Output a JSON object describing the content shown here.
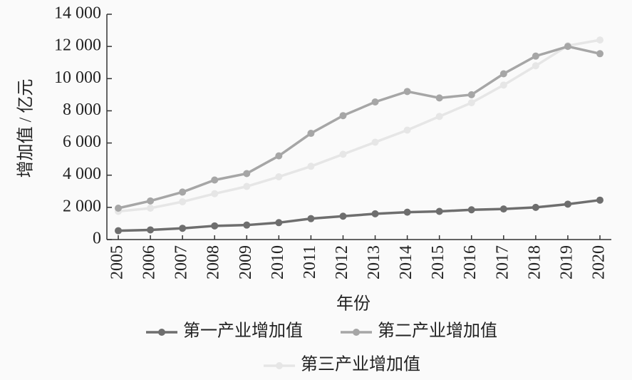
{
  "chart_data": {
    "type": "line",
    "x_label": "年份",
    "y_label": "增加值 / 亿元",
    "categories": [
      "2005",
      "2006",
      "2007",
      "2008",
      "2009",
      "2010",
      "2011",
      "2012",
      "2013",
      "2014",
      "2015",
      "2016",
      "2017",
      "2018",
      "2019",
      "2020"
    ],
    "series": [
      {
        "name": "第一产业增加值",
        "color": "#6e6e6e",
        "values": [
          550,
          600,
          700,
          850,
          900,
          1050,
          1300,
          1450,
          1600,
          1700,
          1750,
          1850,
          1900,
          2000,
          2200,
          2450
        ]
      },
      {
        "name": "第二产业增加值",
        "color": "#a6a6a6",
        "values": [
          1950,
          2400,
          2950,
          3700,
          4100,
          5200,
          6600,
          7700,
          8550,
          9200,
          8800,
          9000,
          10300,
          11400,
          12000,
          11550
        ]
      },
      {
        "name": "第三产业增加值",
        "color": "#e6e6e6",
        "values": [
          1750,
          1950,
          2350,
          2850,
          3300,
          3900,
          4550,
          5300,
          6050,
          6800,
          7650,
          8500,
          9600,
          10800,
          12050,
          12400
        ]
      }
    ],
    "ylim": [
      0,
      14000
    ],
    "yticks": [
      0,
      {
        "value": 2000,
        "label": "2 000"
      },
      {
        "value": 4000,
        "label": "4 000"
      },
      {
        "value": 6000,
        "label": "6 000"
      },
      {
        "value": 8000,
        "label": "8 000"
      },
      {
        "value": 10000,
        "label": "10 000"
      },
      {
        "value": 12000,
        "label": "12 000"
      },
      {
        "value": 14000,
        "label": "14 000"
      }
    ],
    "grid": false
  }
}
